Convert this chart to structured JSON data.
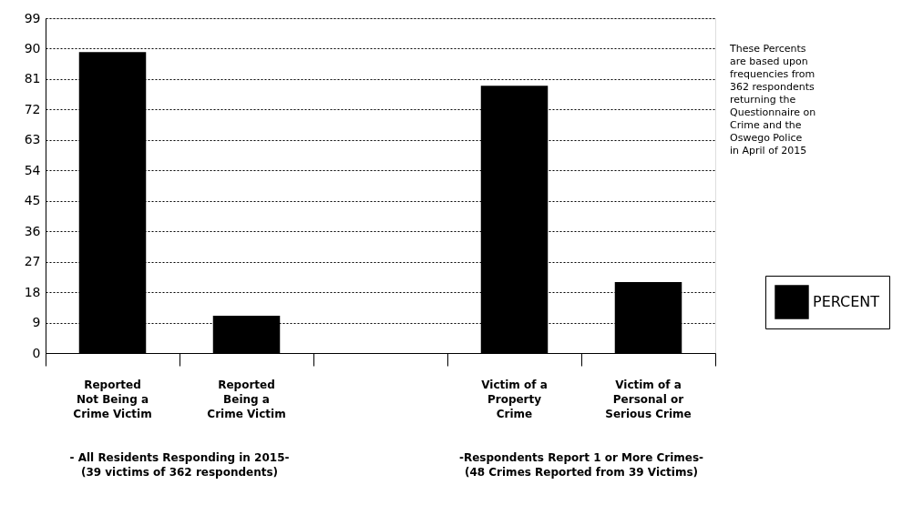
{
  "chart_data": {
    "type": "bar",
    "categories": [
      "Reported\nNot Being a\nCrime Victim",
      "Reported\nBeing a\nCrime Victim",
      null,
      "Victim of a\nProperty\nCrime",
      "Victim of a\nPersonal or\nSerious Crime"
    ],
    "series": [
      {
        "name": "PERCENT",
        "color": "#000000",
        "values": [
          89,
          11,
          null,
          79,
          21
        ]
      }
    ],
    "ylim": [
      0,
      99
    ],
    "yticks": [
      0,
      9,
      18,
      27,
      36,
      45,
      54,
      63,
      72,
      81,
      90,
      99
    ],
    "grid": "y",
    "legend": "right",
    "annotations": [
      {
        "text": "- All Residents Responding in 2015-\n(39 victims of 362 respondents)"
      },
      {
        "text": "-Respondents Report 1 or More Crimes-\n(48 Crimes Reported from 39 Victims)"
      },
      {
        "text": "These Percents\nare based upon\nfrequencies from\n362 respondents\nreturning the\nQuestionnaire on\nCrime and the\nOswego Police\nin April of 2015"
      }
    ]
  }
}
